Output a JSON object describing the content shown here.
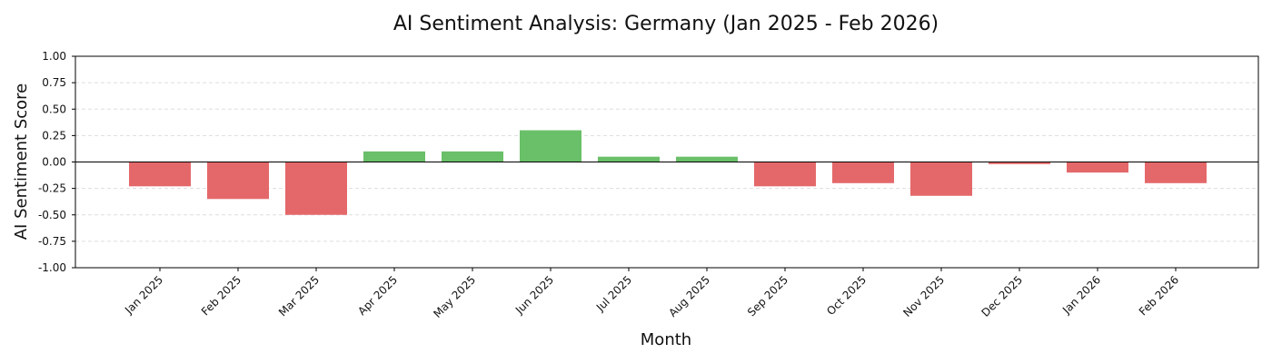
{
  "chart_data": {
    "type": "bar",
    "title": "AI Sentiment Analysis: Germany (Jan 2025 - Feb 2026)",
    "xlabel": "Month",
    "ylabel": "AI Sentiment Score",
    "ylim": [
      -1.0,
      1.0
    ],
    "yticks": [
      1.0,
      0.75,
      0.5,
      0.25,
      0.0,
      -0.25,
      -0.5,
      -0.75,
      -1.0
    ],
    "ytick_labels": [
      "1.00",
      "0.75",
      "0.50",
      "0.25",
      "0.00",
      "-0.25",
      "-0.50",
      "-0.75",
      "-1.00"
    ],
    "grid": "horizontal dashed",
    "colors": {
      "positive": "#6abf69",
      "negative": "#e4686a"
    },
    "categories": [
      "Jan 2025",
      "Feb 2025",
      "Mar 2025",
      "Apr 2025",
      "May 2025",
      "Jun 2025",
      "Jul 2025",
      "Aug 2025",
      "Sep 2025",
      "Oct 2025",
      "Nov 2025",
      "Dec 2025",
      "Jan 2026",
      "Feb 2026"
    ],
    "values": [
      -0.23,
      -0.35,
      -0.5,
      0.1,
      0.1,
      0.3,
      0.05,
      0.05,
      -0.23,
      -0.2,
      -0.32,
      -0.02,
      -0.1,
      -0.2
    ]
  }
}
